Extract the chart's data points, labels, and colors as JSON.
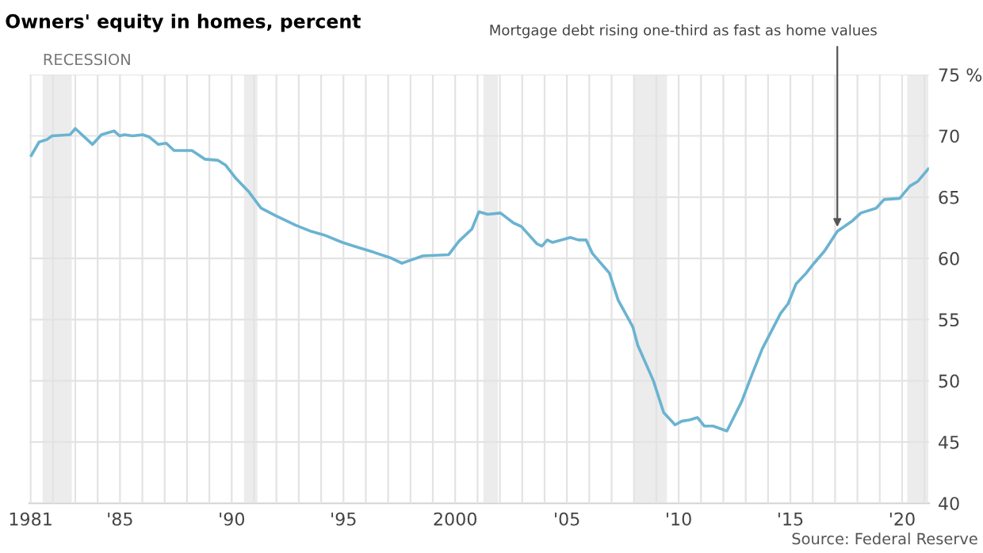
{
  "chart_data": {
    "type": "line",
    "title": "Owners' equity in homes, percent",
    "x": [
      1981.03,
      1981.38,
      1981.73,
      1981.96,
      1982.77,
      1983.0,
      1983.77,
      1984.17,
      1984.74,
      1984.98,
      1985.2,
      1985.56,
      1986.02,
      1986.32,
      1986.72,
      1987.07,
      1987.42,
      1988.22,
      1988.8,
      1989.39,
      1989.73,
      1990.2,
      1990.78,
      1991.31,
      1991.94,
      1992.87,
      1993.56,
      1994.14,
      1994.95,
      1995.65,
      1996.35,
      1997.16,
      1997.62,
      1998.55,
      1999.71,
      2000.17,
      2000.75,
      2001.06,
      2001.45,
      2002.03,
      2002.6,
      2002.96,
      2003.65,
      2003.88,
      2004.12,
      2004.35,
      2005.16,
      2005.51,
      2005.86,
      2006.14,
      2006.9,
      2007.29,
      2007.95,
      2008.17,
      2008.87,
      2009.33,
      2009.84,
      2010.14,
      2010.49,
      2010.84,
      2011.15,
      2011.54,
      2012.16,
      2012.82,
      2013.28,
      2013.74,
      2014.56,
      2014.9,
      2015.25,
      2015.71,
      2016.06,
      2016.53,
      2017.1,
      2017.8,
      2018.15,
      2018.84,
      2019.19,
      2019.89,
      2020.35,
      2020.71,
      2021.17
    ],
    "series": [
      {
        "color": "#6bb3d1",
        "values": [
          68.4,
          69.5,
          69.7,
          70.0,
          70.1,
          70.6,
          69.3,
          70.1,
          70.4,
          70.0,
          70.1,
          70.0,
          70.1,
          69.9,
          69.3,
          69.4,
          68.8,
          68.8,
          68.1,
          68.0,
          67.6,
          66.5,
          65.4,
          64.1,
          63.5,
          62.7,
          62.2,
          61.9,
          61.3,
          60.9,
          60.5,
          60.0,
          59.6,
          60.2,
          60.3,
          61.4,
          62.4,
          63.8,
          63.6,
          63.7,
          62.9,
          62.6,
          61.2,
          61.0,
          61.5,
          61.3,
          61.7,
          61.5,
          61.5,
          60.4,
          58.8,
          56.6,
          54.4,
          52.9,
          50.0,
          47.4,
          46.4,
          46.7,
          46.8,
          47.0,
          46.3,
          46.3,
          45.9,
          48.3,
          50.5,
          52.6,
          55.5,
          56.3,
          57.9,
          58.8,
          59.6,
          60.6,
          62.2,
          63.1,
          63.7,
          64.1,
          64.8,
          64.9,
          65.9,
          66.3,
          67.3
        ]
      }
    ],
    "xlim": [
      1980.95,
      2021.2
    ],
    "xticks": [
      {
        "value": 1981,
        "label": "1981"
      },
      {
        "value": 1982,
        "label": null
      },
      {
        "value": 1983,
        "label": null
      },
      {
        "value": 1984,
        "label": null
      },
      {
        "value": 1985,
        "label": "'85"
      },
      {
        "value": 1986,
        "label": null
      },
      {
        "value": 1987,
        "label": null
      },
      {
        "value": 1988,
        "label": null
      },
      {
        "value": 1989,
        "label": null
      },
      {
        "value": 1990,
        "label": "'90"
      },
      {
        "value": 1991,
        "label": null
      },
      {
        "value": 1992,
        "label": null
      },
      {
        "value": 1993,
        "label": null
      },
      {
        "value": 1994,
        "label": null
      },
      {
        "value": 1995,
        "label": "'95"
      },
      {
        "value": 1996,
        "label": null
      },
      {
        "value": 1997,
        "label": null
      },
      {
        "value": 1998,
        "label": null
      },
      {
        "value": 1999,
        "label": null
      },
      {
        "value": 2000,
        "label": "2000"
      },
      {
        "value": 2001,
        "label": null
      },
      {
        "value": 2002,
        "label": null
      },
      {
        "value": 2003,
        "label": null
      },
      {
        "value": 2004,
        "label": null
      },
      {
        "value": 2005,
        "label": "'05"
      },
      {
        "value": 2006,
        "label": null
      },
      {
        "value": 2007,
        "label": null
      },
      {
        "value": 2008,
        "label": null
      },
      {
        "value": 2009,
        "label": null
      },
      {
        "value": 2010,
        "label": "'10"
      },
      {
        "value": 2011,
        "label": null
      },
      {
        "value": 2012,
        "label": null
      },
      {
        "value": 2013,
        "label": null
      },
      {
        "value": 2014,
        "label": null
      },
      {
        "value": 2015,
        "label": "'15"
      },
      {
        "value": 2016,
        "label": null
      },
      {
        "value": 2017,
        "label": null
      },
      {
        "value": 2018,
        "label": null
      },
      {
        "value": 2019,
        "label": null
      },
      {
        "value": 2020,
        "label": "'20"
      },
      {
        "value": 2021,
        "label": null
      }
    ],
    "ylim": [
      40,
      75
    ],
    "yticks": [
      40,
      45,
      50,
      55,
      60,
      65,
      70,
      {
        "value": 75,
        "label": "75 %"
      }
    ],
    "grid": true,
    "bands": [
      {
        "axis": "x",
        "from": 1981.54,
        "to": 1982.84,
        "label": "RECESSION",
        "color": "#ececec"
      },
      {
        "axis": "x",
        "from": 1990.55,
        "to": 1991.15,
        "color": "#ececec"
      },
      {
        "axis": "x",
        "from": 2001.26,
        "to": 2001.91,
        "color": "#ececec"
      },
      {
        "axis": "x",
        "from": 2008.0,
        "to": 2009.48,
        "color": "#ececec"
      },
      {
        "axis": "x",
        "from": 2020.23,
        "to": 2021.17,
        "color": "#ececec"
      }
    ],
    "annotations": [
      {
        "text": "Mortgage debt rising one-third as fast as home values",
        "x": 2017.1,
        "y": 62.2
      },
      "Source: Federal Reserve"
    ]
  }
}
